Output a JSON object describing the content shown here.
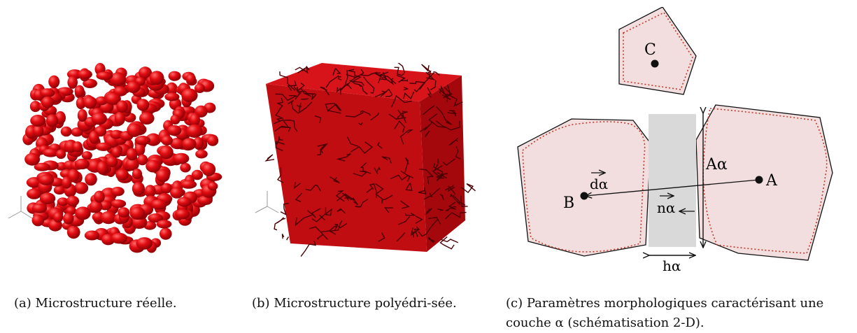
{
  "figure": {
    "panel_a": {
      "label": "(a)",
      "caption": "Microstructure réelle."
    },
    "panel_b": {
      "label": "(b)",
      "caption": "Microstructure polyédri-sée."
    },
    "panel_c": {
      "label": "(c)",
      "caption": "Paramètres morphologiques caractérisant une couche α (schématisation 2-D).",
      "labels": {
        "grain_a": "A",
        "grain_b": "B",
        "grain_c": "C",
        "area": "Aα",
        "distance": "dα",
        "normal": "nα",
        "thickness": "hα"
      }
    },
    "colors": {
      "grain_red": "#c0000c",
      "grain_fill": "#f2dede",
      "grain_dotted": "#c0392b",
      "layer_gray": "#d9d9d9"
    }
  }
}
